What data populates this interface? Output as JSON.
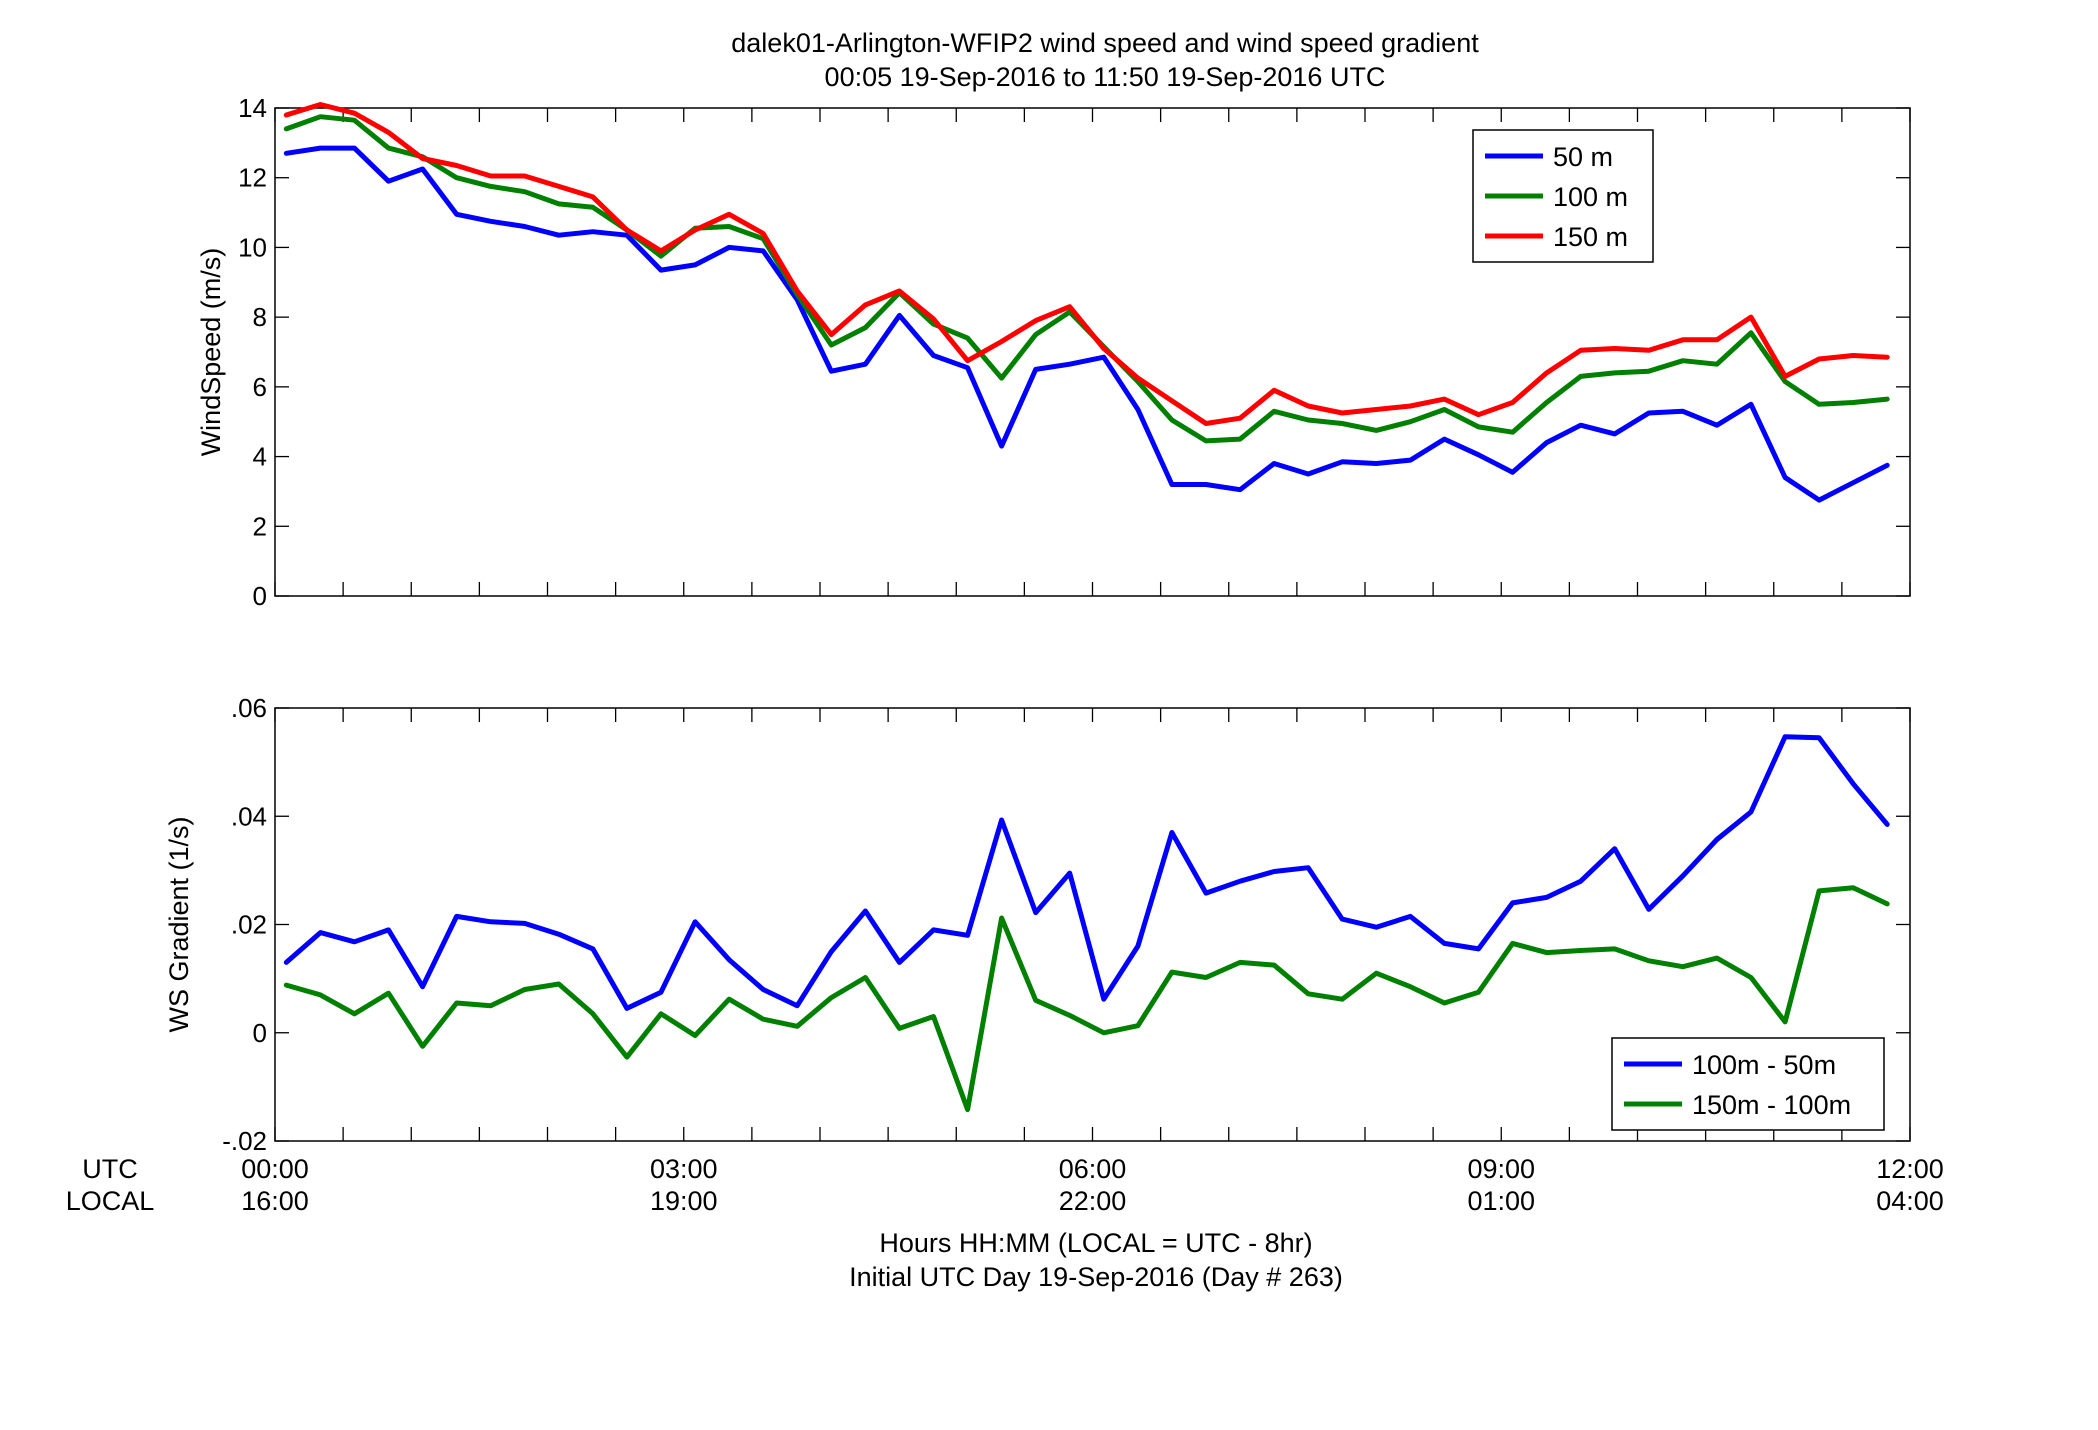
{
  "title_line1": "dalek01-Arlington-WFIP2  wind speed and wind speed gradient",
  "title_line2": "00:05 19-Sep-2016 to 11:50 19-Sep-2016  UTC",
  "xlabel_line1": "Hours HH:MM  (LOCAL = UTC - 8hr)",
  "xlabel_line2": "Initial UTC Day 19-Sep-2016 (Day # 263)",
  "row_label_utc": "UTC",
  "row_label_local": "LOCAL",
  "chart_data": [
    {
      "type": "line",
      "ylabel": "WindSpeed (m/s)",
      "ylim": [
        0,
        14
      ],
      "yticks": [
        0,
        2,
        4,
        6,
        8,
        10,
        12,
        14
      ],
      "xlim": [
        0,
        12
      ],
      "grid": false,
      "legend_position": "top-right",
      "x": [
        0.083,
        0.333,
        0.583,
        0.833,
        1.083,
        1.333,
        1.583,
        1.833,
        2.083,
        2.333,
        2.583,
        2.833,
        3.083,
        3.333,
        3.583,
        3.833,
        4.083,
        4.333,
        4.583,
        4.833,
        5.083,
        5.333,
        5.583,
        5.833,
        6.083,
        6.333,
        6.583,
        6.833,
        7.083,
        7.333,
        7.583,
        7.833,
        8.083,
        8.333,
        8.583,
        8.833,
        9.083,
        9.333,
        9.583,
        9.833,
        10.083,
        10.333,
        10.583,
        10.833,
        11.083,
        11.333,
        11.583,
        11.833
      ],
      "series": [
        {
          "name": "50 m",
          "color": "#0000ff",
          "values": [
            12.7,
            12.85,
            12.85,
            11.9,
            12.25,
            10.95,
            10.75,
            10.6,
            10.35,
            10.45,
            10.35,
            9.35,
            9.5,
            10.0,
            9.9,
            8.5,
            6.45,
            6.65,
            8.05,
            6.9,
            6.55,
            4.3,
            6.5,
            6.65,
            6.85,
            5.35,
            3.2,
            3.2,
            3.05,
            3.8,
            3.5,
            3.85,
            3.8,
            3.9,
            4.5,
            4.05,
            3.55,
            4.4,
            4.9,
            4.65,
            5.25,
            5.3,
            4.9,
            5.5,
            3.4,
            2.75,
            3.25,
            3.75
          ]
        },
        {
          "name": "100 m",
          "color": "#008000",
          "values": [
            13.4,
            13.75,
            13.65,
            12.85,
            12.6,
            12.0,
            11.75,
            11.6,
            11.25,
            11.15,
            10.5,
            9.75,
            10.55,
            10.6,
            10.25,
            8.65,
            7.2,
            7.7,
            8.7,
            7.8,
            7.4,
            6.25,
            7.5,
            8.15,
            7.15,
            6.15,
            5.05,
            4.45,
            4.5,
            5.3,
            5.05,
            4.95,
            4.75,
            5.0,
            5.35,
            4.85,
            4.7,
            5.55,
            6.3,
            6.4,
            6.45,
            6.75,
            6.65,
            7.55,
            6.15,
            5.5,
            5.55,
            5.65
          ]
        },
        {
          "name": "150 m",
          "color": "#ff0000",
          "values": [
            13.8,
            14.1,
            13.85,
            13.3,
            12.55,
            12.35,
            12.05,
            12.05,
            11.75,
            11.45,
            10.5,
            9.9,
            10.5,
            10.95,
            10.4,
            8.75,
            7.5,
            8.35,
            8.75,
            7.95,
            6.75,
            7.3,
            7.9,
            8.3,
            7.1,
            6.25,
            5.6,
            4.95,
            5.1,
            5.9,
            5.45,
            5.25,
            5.35,
            5.45,
            5.65,
            5.2,
            5.55,
            6.4,
            7.05,
            7.1,
            7.05,
            7.35,
            7.35,
            8.0,
            6.3,
            6.8,
            6.9,
            6.85
          ]
        }
      ]
    },
    {
      "type": "line",
      "ylabel": "WS Gradient (1/s)",
      "ylim": [
        -0.02,
        0.06
      ],
      "yticks": [
        -0.02,
        0,
        0.02,
        0.04,
        0.06
      ],
      "xlim": [
        0,
        12
      ],
      "grid": false,
      "legend_position": "bottom-right",
      "x": [
        0.083,
        0.333,
        0.583,
        0.833,
        1.083,
        1.333,
        1.583,
        1.833,
        2.083,
        2.333,
        2.583,
        2.833,
        3.083,
        3.333,
        3.583,
        3.833,
        4.083,
        4.333,
        4.583,
        4.833,
        5.083,
        5.333,
        5.583,
        5.833,
        6.083,
        6.333,
        6.583,
        6.833,
        7.083,
        7.333,
        7.583,
        7.833,
        8.083,
        8.333,
        8.583,
        8.833,
        9.083,
        9.333,
        9.583,
        9.833,
        10.083,
        10.333,
        10.583,
        10.833,
        11.083,
        11.333,
        11.583,
        11.833
      ],
      "series": [
        {
          "name": "100m - 50m",
          "color": "#0000ff",
          "values": [
            0.013,
            0.0185,
            0.0168,
            0.019,
            0.0085,
            0.0215,
            0.0205,
            0.0202,
            0.0182,
            0.0155,
            0.0045,
            0.0075,
            0.0205,
            0.0135,
            0.008,
            0.005,
            0.015,
            0.0225,
            0.013,
            0.019,
            0.018,
            0.0393,
            0.0222,
            0.0295,
            0.0062,
            0.016,
            0.037,
            0.0258,
            0.028,
            0.0298,
            0.0305,
            0.021,
            0.0195,
            0.0215,
            0.0165,
            0.0155,
            0.024,
            0.025,
            0.028,
            0.034,
            0.0228,
            0.029,
            0.0357,
            0.0408,
            0.0547,
            0.0545,
            0.046,
            0.0385
          ]
        },
        {
          "name": "150m - 100m",
          "color": "#008000",
          "values": [
            0.0088,
            0.007,
            0.0035,
            0.0073,
            -0.0025,
            0.0055,
            0.005,
            0.008,
            0.009,
            0.0035,
            -0.0045,
            0.0035,
            -0.0005,
            0.0062,
            0.0025,
            0.0012,
            0.0065,
            0.0102,
            0.0008,
            0.003,
            -0.0142,
            0.0212,
            0.006,
            0.0032,
            0.0,
            0.0013,
            0.0112,
            0.0102,
            0.013,
            0.0125,
            0.0072,
            0.0062,
            0.011,
            0.0085,
            0.0055,
            0.0075,
            0.0165,
            0.0148,
            0.0152,
            0.0155,
            0.0133,
            0.0122,
            0.0138,
            0.0102,
            0.002,
            0.0262,
            0.0268,
            0.0238
          ]
        }
      ]
    }
  ],
  "x_ticks": [
    {
      "value": 0,
      "utc": "00:00",
      "local": "16:00"
    },
    {
      "value": 3,
      "utc": "03:00",
      "local": "19:00"
    },
    {
      "value": 6,
      "utc": "06:00",
      "local": "22:00"
    },
    {
      "value": 9,
      "utc": "09:00",
      "local": "01:00"
    },
    {
      "value": 12,
      "utc": "12:00",
      "local": "04:00"
    }
  ]
}
